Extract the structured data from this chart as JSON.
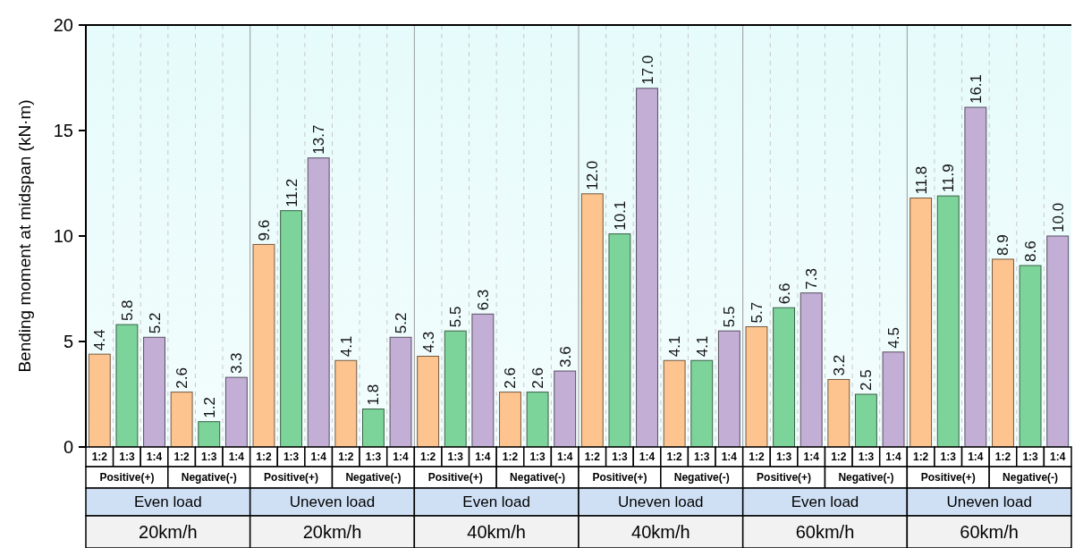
{
  "chart_data": {
    "type": "bar",
    "ylabel": "Bending moment at midspan (kN·m)",
    "categories": [
      "1:2",
      "1:3",
      "1:4",
      "1:2",
      "1:3",
      "1:4",
      "1:2",
      "1:3",
      "1:4",
      "1:2",
      "1:3",
      "1:4",
      "1:2",
      "1:3",
      "1:4",
      "1:2",
      "1:3",
      "1:4",
      "1:2",
      "1:3",
      "1:4",
      "1:2",
      "1:3",
      "1:4",
      "1:2",
      "1:3",
      "1:4",
      "1:2",
      "1:3",
      "1:4",
      "1:2",
      "1:3",
      "1:4",
      "1:2",
      "1:3",
      "1:4"
    ],
    "values": [
      4.4,
      5.8,
      5.2,
      2.6,
      1.2,
      3.3,
      9.6,
      11.2,
      13.7,
      4.1,
      1.8,
      5.2,
      4.3,
      5.5,
      6.3,
      2.6,
      2.6,
      3.6,
      12.0,
      10.1,
      17.0,
      4.1,
      4.1,
      5.5,
      5.7,
      6.6,
      7.3,
      3.2,
      2.5,
      4.5,
      11.8,
      11.9,
      16.1,
      8.9,
      8.6,
      10.0
    ],
    "value_labels": [
      "4.4",
      "5.8",
      "5.2",
      "2.6",
      "1.2",
      "3.3",
      "9.6",
      "11.2",
      "13.7",
      "4.1",
      "1.8",
      "5.2",
      "4.3",
      "5.5",
      "6.3",
      "2.6",
      "2.6",
      "3.6",
      "12.0",
      "10.1",
      "17.0",
      "4.1",
      "4.1",
      "5.5",
      "5.7",
      "6.6",
      "7.3",
      "3.2",
      "2.5",
      "4.5",
      "11.8",
      "11.9",
      "16.1",
      "8.9",
      "8.6",
      "10.0"
    ],
    "colors": [
      "#fdc48f",
      "#7dd49a",
      "#c3aed6",
      "#fdc48f",
      "#7dd49a",
      "#c3aed6",
      "#fdc48f",
      "#7dd49a",
      "#c3aed6",
      "#fdc48f",
      "#7dd49a",
      "#c3aed6",
      "#fdc48f",
      "#7dd49a",
      "#c3aed6",
      "#fdc48f",
      "#7dd49a",
      "#c3aed6",
      "#fdc48f",
      "#7dd49a",
      "#c3aed6",
      "#fdc48f",
      "#7dd49a",
      "#c3aed6",
      "#fdc48f",
      "#7dd49a",
      "#c3aed6",
      "#fdc48f",
      "#7dd49a",
      "#c3aed6",
      "#fdc48f",
      "#7dd49a",
      "#c3aed6",
      "#fdc48f",
      "#7dd49a",
      "#c3aed6"
    ],
    "annotations": [
      "Positive(+)",
      "Negative(-)",
      "Positive(+)",
      "Negative(-)",
      "Positive(+)",
      "Negative(-)",
      "Positive(+)",
      "Negative(-)",
      "Positive(+)",
      "Negative(-)",
      "Positive(+)",
      "Negative(-)",
      "Even load",
      "Uneven load",
      "Even load",
      "Uneven load",
      "Even load",
      "Uneven load",
      "20km/h",
      "20km/h",
      "40km/h",
      "40km/h",
      "60km/h",
      "60km/h"
    ],
    "ylim": [
      0,
      20
    ],
    "yticks": [
      0,
      5,
      10,
      15,
      20
    ],
    "grid": "x"
  }
}
